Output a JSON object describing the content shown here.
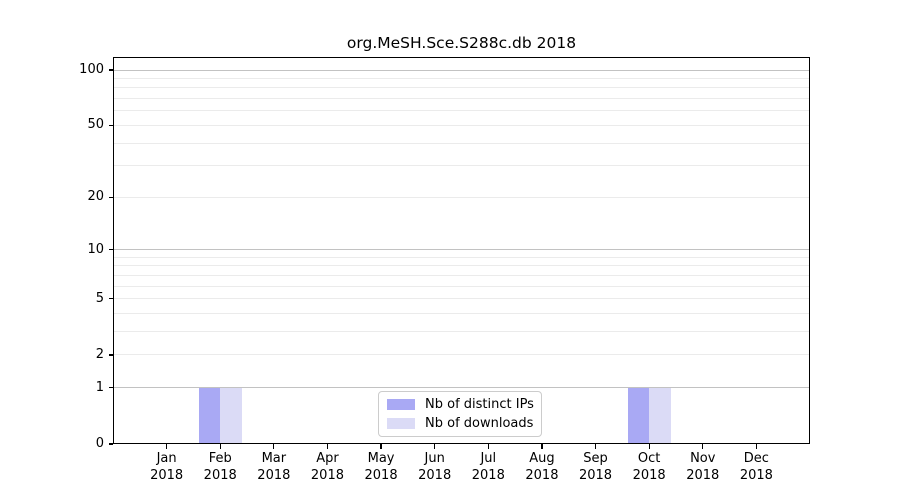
{
  "title": "org.MeSH.Sce.S288c.db 2018",
  "chart_data": {
    "type": "bar",
    "title": "org.MeSH.Sce.S288c.db 2018",
    "xlabel": "",
    "ylabel": "",
    "x_ticks": [
      [
        "Jan",
        "2018"
      ],
      [
        "Feb",
        "2018"
      ],
      [
        "Mar",
        "2018"
      ],
      [
        "Apr",
        "2018"
      ],
      [
        "May",
        "2018"
      ],
      [
        "Jun",
        "2018"
      ],
      [
        "Jul",
        "2018"
      ],
      [
        "Aug",
        "2018"
      ],
      [
        "Sep",
        "2018"
      ],
      [
        "Oct",
        "2018"
      ],
      [
        "Nov",
        "2018"
      ],
      [
        "Dec",
        "2018"
      ]
    ],
    "categories": [
      "Jan 2018",
      "Feb 2018",
      "Mar 2018",
      "Apr 2018",
      "May 2018",
      "Jun 2018",
      "Jul 2018",
      "Aug 2018",
      "Sep 2018",
      "Oct 2018",
      "Nov 2018",
      "Dec 2018"
    ],
    "series": [
      {
        "name": "Nb of distinct IPs",
        "color": "#a9a9f4",
        "values": [
          0,
          1,
          0,
          0,
          0,
          0,
          0,
          0,
          0,
          1,
          0,
          0
        ]
      },
      {
        "name": "Nb of downloads",
        "color": "#dbdbf6",
        "values": [
          0,
          1,
          0,
          0,
          0,
          0,
          0,
          0,
          0,
          1,
          0,
          0
        ]
      }
    ],
    "y_scale": "log1p",
    "y_ticks": [
      0,
      1,
      2,
      5,
      10,
      20,
      50,
      100
    ],
    "ylim": [
      0,
      118
    ],
    "grid": {
      "major_values": [
        1,
        10,
        100
      ],
      "minor_values": [
        2,
        3,
        4,
        5,
        6,
        7,
        8,
        9,
        20,
        30,
        40,
        50,
        60,
        70,
        80,
        90
      ],
      "major_color": "#c2c2c2",
      "minor_color": "#ebebeb"
    },
    "legend": {
      "position": "bottom-center",
      "border_color": "#cccccc",
      "background": "#ffffff"
    },
    "colors": {
      "background": "#ffffff",
      "axis": "#000000",
      "text": "#000000"
    }
  }
}
